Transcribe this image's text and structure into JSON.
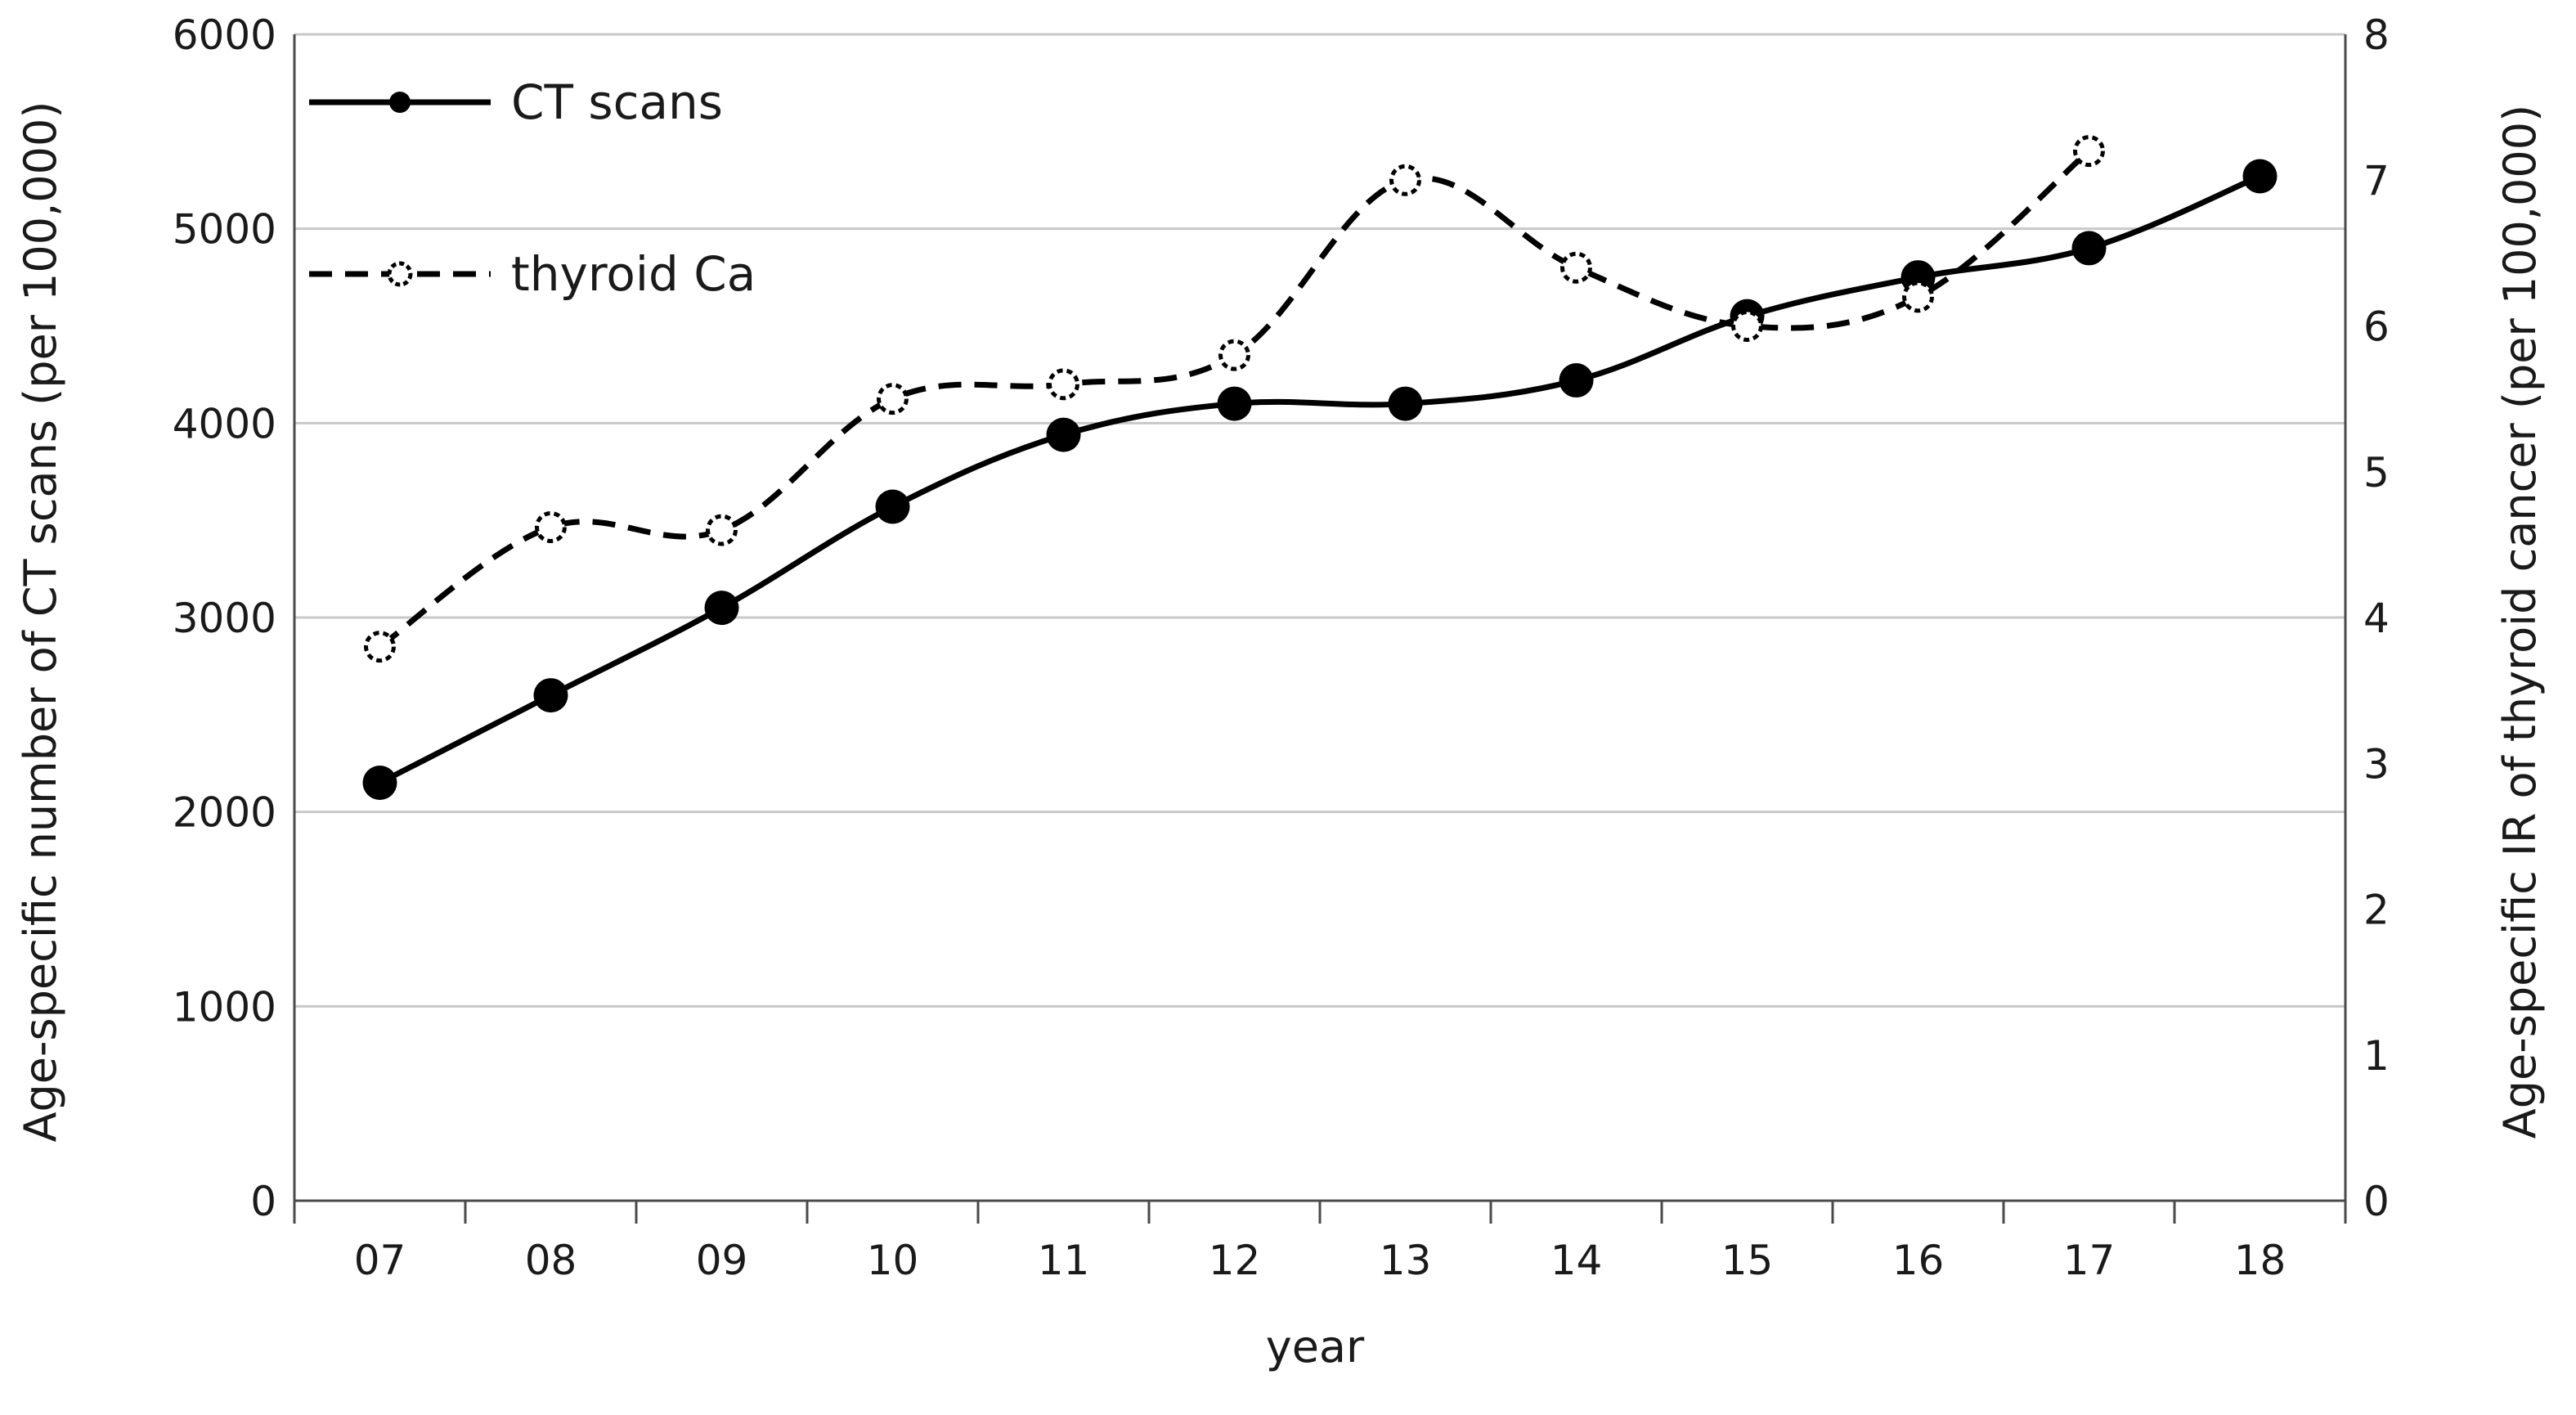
{
  "chart_data": {
    "type": "line",
    "categories": [
      "07",
      "08",
      "09",
      "10",
      "11",
      "12",
      "13",
      "14",
      "15",
      "16",
      "17",
      "18"
    ],
    "xlabel": "year",
    "ylabel_left": "Age-specific number of CT scans (per 100,000)",
    "ylabel_right": "Age-specific IR of thyroid cancer (per 100,000)",
    "ylim_left": [
      0,
      6000
    ],
    "ylim_right": [
      0,
      8
    ],
    "yticks_left": [
      "0",
      "1000",
      "2000",
      "3000",
      "4000",
      "5000",
      "6000"
    ],
    "yticks_right": [
      "0",
      "1",
      "2",
      "3",
      "4",
      "5",
      "6",
      "7",
      "8"
    ],
    "grid": "horizontal",
    "legend_position": "top-left",
    "series": [
      {
        "name": "CT scans",
        "axis": "left",
        "style": "solid-filled-markers",
        "color": "#000000",
        "values": [
          2150,
          2600,
          3050,
          3570,
          3940,
          4100,
          4100,
          4220,
          4550,
          4750,
          4900,
          5270
        ]
      },
      {
        "name": "thyroid Ca",
        "axis": "right",
        "style": "dashed-open-markers",
        "color": "#000000",
        "values": [
          3.8,
          4.62,
          4.6,
          5.5,
          5.6,
          5.8,
          7.0,
          6.4,
          6.0,
          6.2,
          7.2,
          null
        ]
      }
    ]
  }
}
